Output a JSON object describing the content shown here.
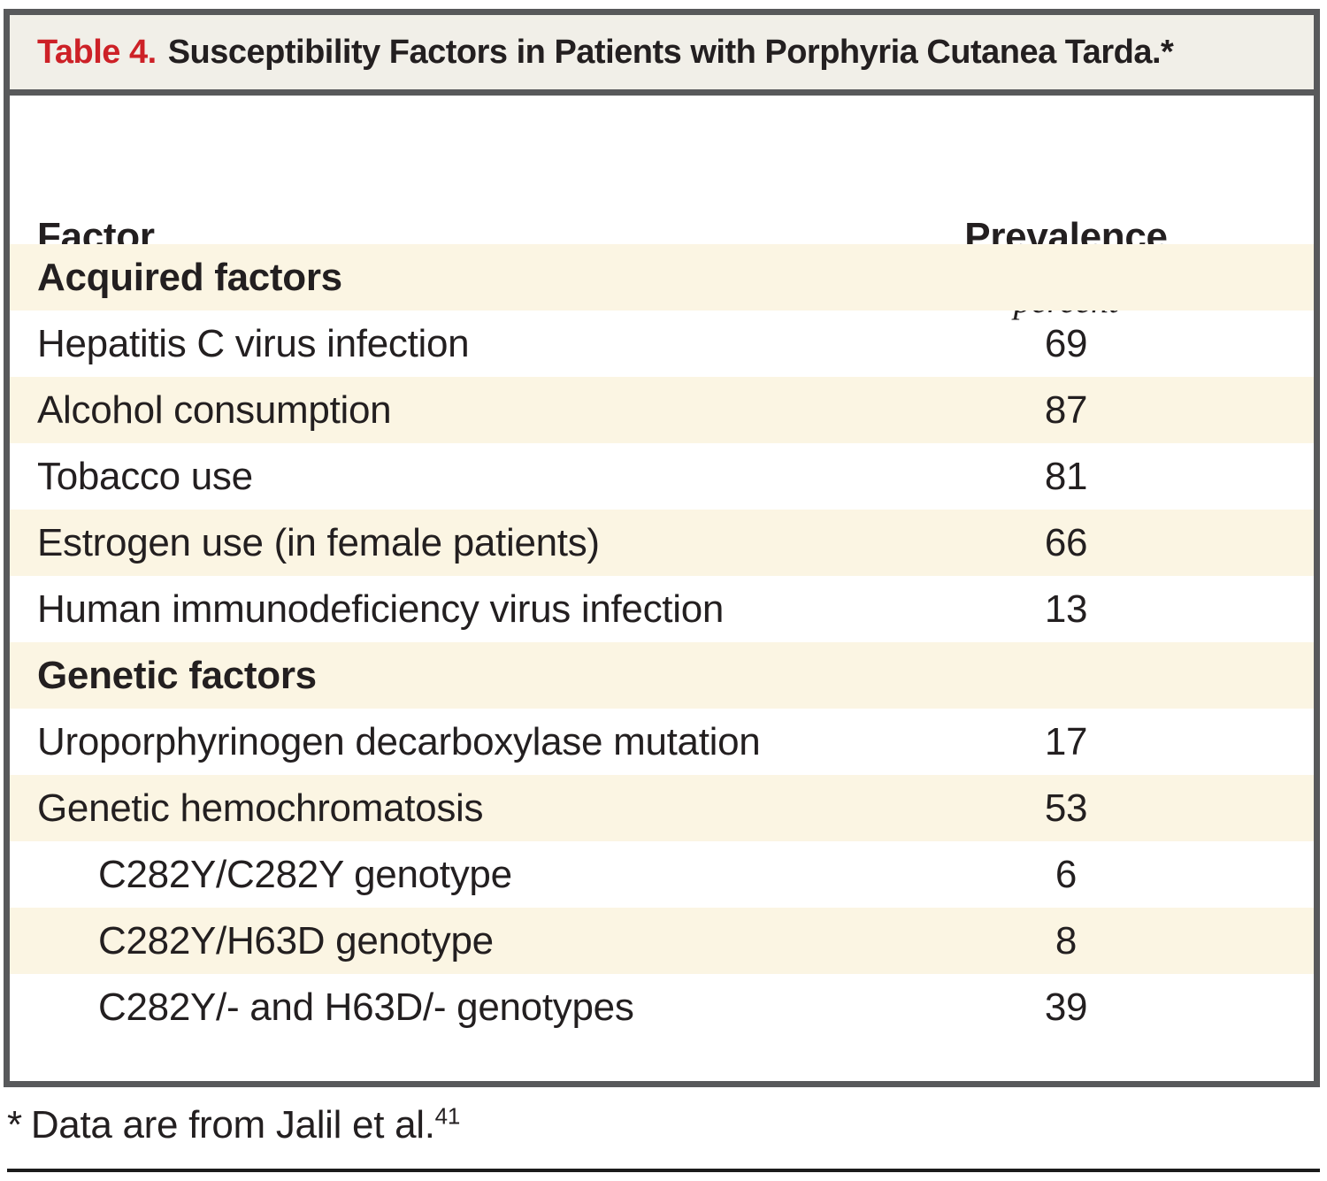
{
  "page": {
    "title_bar": {
      "label": "Table 4.",
      "title": "Susceptibility Factors in Patients with Porphyria Cutanea Tarda.*"
    },
    "columns": {
      "factor": "Factor",
      "prevalence": "Prevalence",
      "unit": "percent"
    },
    "rows": [
      {
        "label": "Acquired factors",
        "value": "",
        "kind": "section"
      },
      {
        "label": "Hepatitis C virus infection",
        "value": "69",
        "kind": "item"
      },
      {
        "label": "Alcohol consumption",
        "value": "87",
        "kind": "item"
      },
      {
        "label": "Tobacco use",
        "value": "81",
        "kind": "item"
      },
      {
        "label": "Estrogen use (in female patients)",
        "value": "66",
        "kind": "item"
      },
      {
        "label": "Human immunodeficiency virus infection",
        "value": "13",
        "kind": "item"
      },
      {
        "label": "Genetic factors",
        "value": "",
        "kind": "section"
      },
      {
        "label": "Uroporphyrinogen decarboxylase mutation",
        "value": "17",
        "kind": "item"
      },
      {
        "label": "Genetic hemochromatosis",
        "value": "53",
        "kind": "item"
      },
      {
        "label": "C282Y/C282Y genotype",
        "value": "6",
        "kind": "subitem"
      },
      {
        "label": "C282Y/H63D genotype",
        "value": "8",
        "kind": "subitem"
      },
      {
        "label": "C282Y/- and H63D/- genotypes",
        "value": "39",
        "kind": "subitem"
      }
    ],
    "footnote": {
      "marker": "*",
      "text": "Data are from Jalil et al.",
      "ref": "41"
    },
    "colors": {
      "accent_red": "#cd2127",
      "row_stripe": "#fbf5e3",
      "title_bar_bg": "#f1efe8",
      "border_gray": "#58595b",
      "text": "#231f20",
      "rule_black": "#1c1c1c"
    }
  }
}
